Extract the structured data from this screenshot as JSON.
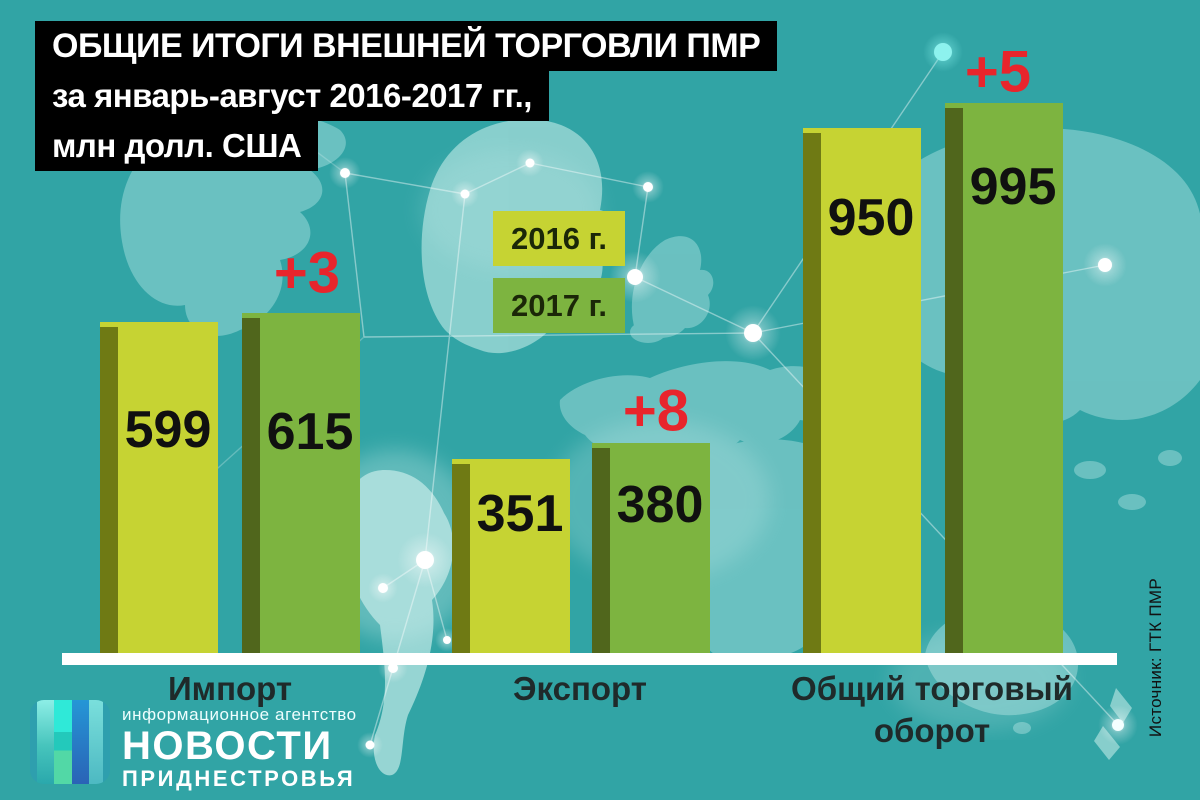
{
  "title": {
    "line1": "ОБЩИЕ ИТОГИ ВНЕШНЕЙ ТОРГОВЛИ ПМР",
    "line2": "за январь-август 2016-2017 гг.,",
    "line3": "млн долл. США"
  },
  "legend": {
    "items": [
      {
        "label": "2016 г."
      },
      {
        "label": "2017 г."
      }
    ]
  },
  "source_note": "Источник: ГТК ПМР",
  "logo": {
    "tagline": "информационное агентство",
    "title": "НОВОСТИ",
    "subtitle": "ПРИДНЕСТРОВЬЯ"
  },
  "chart_data": {
    "type": "bar",
    "title": "ОБЩИЕ ИТОГИ ВНЕШНЕЙ ТОРГОВЛИ ПМР за январь-август 2016-2017 гг., млн долл. США",
    "unit": "млн долл. США",
    "categories": [
      "Импорт",
      "Экспорт",
      "Общий торговый оборот"
    ],
    "series": [
      {
        "name": "2016 г.",
        "values": [
          599,
          351,
          950
        ]
      },
      {
        "name": "2017 г.",
        "values": [
          615,
          380,
          995
        ]
      }
    ],
    "annotations": [
      "+3",
      "+8",
      "+5"
    ],
    "ylim": [
      0,
      1000
    ],
    "legend_position": "top-center",
    "grid": false,
    "colors": {
      "bar_2016": "#c6d333",
      "bar_2016_dark": "#6f7a14",
      "bar_2017": "#7db440",
      "bar_2017_dark": "#50661c",
      "annotation": "#e8252c",
      "background": "#31a4a5",
      "map_land": "#6fc3c3",
      "baseline": "#ffffff",
      "title_bg": "#000000",
      "title_text": "#ffffff",
      "value_text": "#101010"
    }
  }
}
